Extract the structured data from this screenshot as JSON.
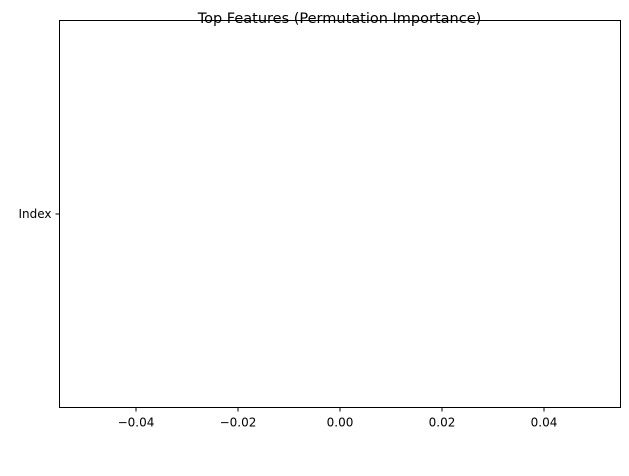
{
  "chart_data": {
    "type": "bar",
    "orientation": "horizontal",
    "title": "Top Features (Permutation Importance)",
    "xlabel": "",
    "ylabel": "",
    "categories": [
      "Index"
    ],
    "values": [
      0.0
    ],
    "xlim": [
      -0.055,
      0.055
    ],
    "xticks": [
      -0.04,
      -0.02,
      0.0,
      0.02,
      0.04
    ],
    "xtick_labels": [
      "−0.04",
      "−0.02",
      "0.00",
      "0.02",
      "0.04"
    ],
    "grid": false,
    "bar_color": "#1f77b4"
  }
}
